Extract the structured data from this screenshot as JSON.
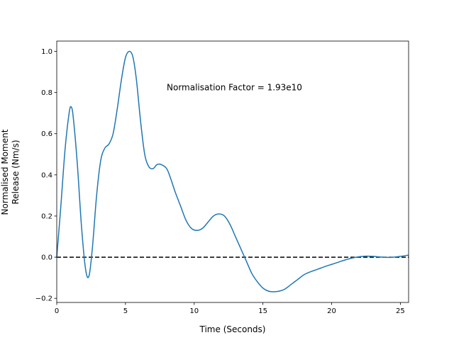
{
  "chart_data": {
    "type": "line",
    "title": "",
    "xlabel": "Time (Seconds)",
    "ylabel_lines": [
      "Normalised Moment",
      "Release (Nm/s)"
    ],
    "xlim": [
      0,
      25.6
    ],
    "ylim": [
      -0.22,
      1.05
    ],
    "xticks": [
      0,
      5,
      10,
      15,
      20,
      25
    ],
    "yticks": [
      -0.2,
      0.0,
      0.2,
      0.4,
      0.6,
      0.8,
      1.0
    ],
    "xtick_labels": [
      "0",
      "5",
      "10",
      "15",
      "20",
      "25"
    ],
    "ytick_labels": [
      "−0.2",
      "0.0",
      "0.2",
      "0.4",
      "0.6",
      "0.8",
      "1.0"
    ],
    "grid": false,
    "annotation": {
      "text": "Normalisation Factor = 1.93e10",
      "x": 8.0,
      "y": 0.81
    },
    "reference_line": {
      "y": 0.0,
      "style": "dashed",
      "color": "#000000"
    },
    "series": [
      {
        "color": "#1f77b4",
        "x": [
          0,
          0.3,
          0.6,
          0.9,
          1.05,
          1.2,
          1.5,
          1.8,
          2.1,
          2.35,
          2.6,
          2.9,
          3.2,
          3.5,
          3.8,
          4.1,
          4.4,
          4.7,
          5.0,
          5.3,
          5.55,
          5.8,
          6.1,
          6.4,
          6.7,
          7.0,
          7.3,
          7.6,
          8.0,
          8.3,
          8.6,
          9.0,
          9.4,
          9.8,
          10.2,
          10.6,
          11.0,
          11.4,
          11.8,
          12.2,
          12.6,
          13.0,
          13.4,
          13.8,
          14.2,
          14.6,
          15.0,
          15.4,
          15.8,
          16.2,
          16.6,
          17.0,
          17.5,
          18.0,
          18.5,
          19.0,
          19.5,
          20.0,
          20.5,
          21.0,
          21.5,
          22.0,
          22.5,
          23.0,
          23.5,
          24.0,
          24.5,
          25.0,
          25.6
        ],
        "y": [
          0.0,
          0.25,
          0.52,
          0.7,
          0.73,
          0.68,
          0.45,
          0.15,
          -0.06,
          -0.09,
          0.05,
          0.3,
          0.47,
          0.53,
          0.55,
          0.6,
          0.72,
          0.86,
          0.97,
          1.0,
          0.97,
          0.86,
          0.66,
          0.5,
          0.44,
          0.43,
          0.45,
          0.45,
          0.43,
          0.38,
          0.32,
          0.25,
          0.18,
          0.14,
          0.13,
          0.14,
          0.17,
          0.2,
          0.21,
          0.2,
          0.16,
          0.1,
          0.04,
          -0.02,
          -0.08,
          -0.12,
          -0.15,
          -0.165,
          -0.168,
          -0.165,
          -0.155,
          -0.135,
          -0.11,
          -0.085,
          -0.07,
          -0.058,
          -0.046,
          -0.035,
          -0.024,
          -0.013,
          -0.004,
          0.002,
          0.005,
          0.004,
          0.001,
          -0.001,
          0.0,
          0.004,
          0.01
        ]
      }
    ]
  }
}
